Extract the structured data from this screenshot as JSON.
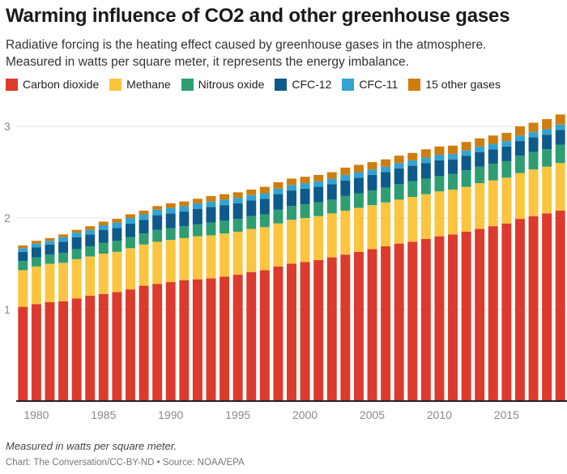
{
  "header": {
    "title": "Warming influence of CO2 and other greenhouse gases",
    "subtitle_line1": "Radiative forcing is the heating effect caused by greenhouse gases in the atmosphere.",
    "subtitle_line2": "Measured in watts per square meter, it represents the energy imbalance."
  },
  "footer": {
    "note": "Measured in watts per square meter.",
    "source": "Chart: The Conversation/CC-BY-ND • Source: NOAA/EPA"
  },
  "chart_data": {
    "type": "bar",
    "stacked": true,
    "title": "Warming influence of CO2 and other greenhouse gases",
    "xlabel": "",
    "ylabel": "",
    "ylim": [
      0,
      3.2
    ],
    "yticks": [
      1,
      2,
      3
    ],
    "xticks": [
      1980,
      1985,
      1990,
      1995,
      2000,
      2005,
      2010,
      2015
    ],
    "grid": true,
    "legend_position": "top-left",
    "categories": [
      1979,
      1980,
      1981,
      1982,
      1983,
      1984,
      1985,
      1986,
      1987,
      1988,
      1989,
      1990,
      1991,
      1992,
      1993,
      1994,
      1995,
      1996,
      1997,
      1998,
      1999,
      2000,
      2001,
      2002,
      2003,
      2004,
      2005,
      2006,
      2007,
      2008,
      2009,
      2010,
      2011,
      2012,
      2013,
      2014,
      2015,
      2016,
      2017,
      2018,
      2019
    ],
    "series": [
      {
        "name": "Carbon dioxide",
        "color": "#dc3a2d",
        "values": [
          1.03,
          1.06,
          1.08,
          1.09,
          1.12,
          1.15,
          1.17,
          1.19,
          1.22,
          1.26,
          1.28,
          1.3,
          1.32,
          1.33,
          1.34,
          1.36,
          1.38,
          1.41,
          1.43,
          1.47,
          1.5,
          1.52,
          1.54,
          1.57,
          1.6,
          1.63,
          1.66,
          1.69,
          1.72,
          1.74,
          1.77,
          1.8,
          1.82,
          1.85,
          1.88,
          1.91,
          1.94,
          1.99,
          2.02,
          2.05,
          2.08
        ]
      },
      {
        "name": "Methane",
        "color": "#fcc53f",
        "values": [
          0.4,
          0.41,
          0.42,
          0.42,
          0.43,
          0.43,
          0.44,
          0.44,
          0.45,
          0.45,
          0.46,
          0.46,
          0.46,
          0.47,
          0.47,
          0.47,
          0.47,
          0.47,
          0.47,
          0.47,
          0.48,
          0.48,
          0.48,
          0.48,
          0.48,
          0.48,
          0.48,
          0.48,
          0.48,
          0.49,
          0.49,
          0.49,
          0.49,
          0.49,
          0.5,
          0.5,
          0.5,
          0.5,
          0.51,
          0.51,
          0.52
        ]
      },
      {
        "name": "Nitrous oxide",
        "color": "#2e9e72",
        "values": [
          0.1,
          0.1,
          0.1,
          0.11,
          0.11,
          0.11,
          0.12,
          0.12,
          0.12,
          0.12,
          0.13,
          0.13,
          0.13,
          0.13,
          0.14,
          0.14,
          0.14,
          0.14,
          0.14,
          0.15,
          0.15,
          0.15,
          0.15,
          0.15,
          0.16,
          0.16,
          0.16,
          0.16,
          0.17,
          0.17,
          0.17,
          0.17,
          0.17,
          0.18,
          0.18,
          0.18,
          0.18,
          0.19,
          0.19,
          0.19,
          0.2
        ]
      },
      {
        "name": "CFC-12",
        "color": "#0e5a8a",
        "values": [
          0.1,
          0.11,
          0.11,
          0.12,
          0.13,
          0.13,
          0.14,
          0.14,
          0.15,
          0.15,
          0.16,
          0.16,
          0.16,
          0.17,
          0.17,
          0.17,
          0.17,
          0.17,
          0.17,
          0.17,
          0.17,
          0.17,
          0.17,
          0.17,
          0.17,
          0.17,
          0.17,
          0.17,
          0.17,
          0.17,
          0.17,
          0.17,
          0.16,
          0.16,
          0.16,
          0.16,
          0.16,
          0.16,
          0.16,
          0.16,
          0.16
        ]
      },
      {
        "name": "CFC-11",
        "color": "#33a3d3",
        "values": [
          0.04,
          0.04,
          0.04,
          0.05,
          0.05,
          0.05,
          0.05,
          0.06,
          0.06,
          0.06,
          0.06,
          0.06,
          0.06,
          0.06,
          0.06,
          0.06,
          0.06,
          0.06,
          0.06,
          0.06,
          0.06,
          0.06,
          0.06,
          0.06,
          0.06,
          0.06,
          0.06,
          0.06,
          0.06,
          0.06,
          0.06,
          0.06,
          0.06,
          0.06,
          0.06,
          0.06,
          0.06,
          0.06,
          0.06,
          0.06,
          0.06
        ]
      },
      {
        "name": "15 other gases",
        "color": "#cf7d0d",
        "values": [
          0.03,
          0.03,
          0.03,
          0.03,
          0.03,
          0.04,
          0.04,
          0.04,
          0.04,
          0.04,
          0.04,
          0.05,
          0.05,
          0.05,
          0.06,
          0.06,
          0.06,
          0.06,
          0.07,
          0.07,
          0.07,
          0.07,
          0.07,
          0.07,
          0.08,
          0.08,
          0.08,
          0.08,
          0.08,
          0.08,
          0.09,
          0.09,
          0.09,
          0.09,
          0.09,
          0.09,
          0.09,
          0.1,
          0.1,
          0.11,
          0.11
        ]
      }
    ]
  }
}
